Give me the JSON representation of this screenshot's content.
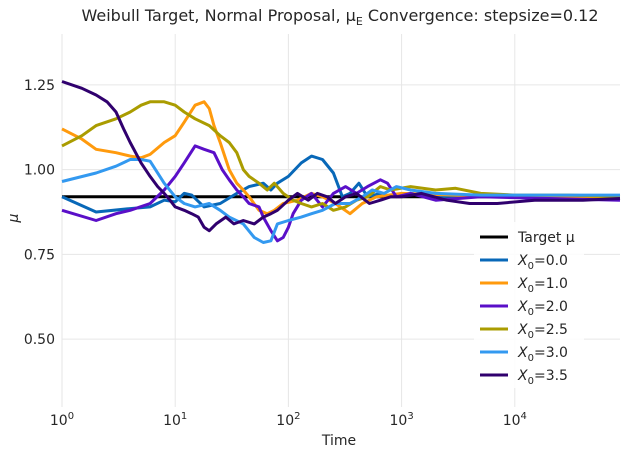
{
  "chart_data": {
    "type": "line",
    "title": "Weibull Target, Normal Proposal, μ",
    "title_sub": "E",
    "title_rest": " Convergence: stepsize=0.12",
    "xlabel": "Time",
    "ylabel": "μ",
    "xscale": "log",
    "xlim": [
      1,
      85000
    ],
    "ylim": [
      0.3,
      1.4
    ],
    "x_ticks": [
      {
        "base": "10",
        "exp": "0",
        "value": 1
      },
      {
        "base": "10",
        "exp": "1",
        "value": 10
      },
      {
        "base": "10",
        "exp": "2",
        "value": 100
      },
      {
        "base": "10",
        "exp": "3",
        "value": 1000
      },
      {
        "base": "10",
        "exp": "4",
        "value": 10000
      }
    ],
    "y_ticks": [
      "0.50",
      "0.75",
      "1.00",
      "1.25"
    ],
    "grid": true,
    "legend_position": "lower-right",
    "target": {
      "name": "Target μ",
      "value": 0.92,
      "color": "#000000"
    },
    "series": [
      {
        "label_base": "X",
        "label_sub": "0",
        "label_rest": "=0.0",
        "color": "#0868b8",
        "points": [
          [
            1,
            0.92
          ],
          [
            2,
            0.875
          ],
          [
            4,
            0.885
          ],
          [
            6,
            0.89
          ],
          [
            8,
            0.91
          ],
          [
            10,
            0.905
          ],
          [
            12,
            0.93
          ],
          [
            14,
            0.925
          ],
          [
            18,
            0.89
          ],
          [
            25,
            0.9
          ],
          [
            35,
            0.93
          ],
          [
            45,
            0.95
          ],
          [
            60,
            0.96
          ],
          [
            70,
            0.94
          ],
          [
            80,
            0.96
          ],
          [
            100,
            0.98
          ],
          [
            130,
            1.02
          ],
          [
            160,
            1.04
          ],
          [
            200,
            1.03
          ],
          [
            250,
            0.99
          ],
          [
            300,
            0.92
          ],
          [
            350,
            0.93
          ],
          [
            420,
            0.96
          ],
          [
            500,
            0.92
          ],
          [
            650,
            0.93
          ],
          [
            800,
            0.92
          ],
          [
            1200,
            0.93
          ],
          [
            2000,
            0.92
          ],
          [
            5000,
            0.925
          ],
          [
            20000,
            0.92
          ],
          [
            85000,
            0.92
          ]
        ]
      },
      {
        "label_base": "X",
        "label_sub": "0",
        "label_rest": "=1.0",
        "color": "#ff9a0d",
        "points": [
          [
            1,
            1.12
          ],
          [
            1.5,
            1.09
          ],
          [
            2,
            1.06
          ],
          [
            3,
            1.05
          ],
          [
            4,
            1.04
          ],
          [
            5,
            1.035
          ],
          [
            6,
            1.045
          ],
          [
            8,
            1.08
          ],
          [
            10,
            1.1
          ],
          [
            12,
            1.14
          ],
          [
            15,
            1.19
          ],
          [
            18,
            1.2
          ],
          [
            20,
            1.18
          ],
          [
            22,
            1.13
          ],
          [
            25,
            1.08
          ],
          [
            30,
            1.0
          ],
          [
            35,
            0.96
          ],
          [
            40,
            0.94
          ],
          [
            45,
            0.92
          ],
          [
            55,
            0.88
          ],
          [
            65,
            0.87
          ],
          [
            75,
            0.88
          ],
          [
            90,
            0.9
          ],
          [
            120,
            0.91
          ],
          [
            160,
            0.93
          ],
          [
            200,
            0.92
          ],
          [
            260,
            0.9
          ],
          [
            350,
            0.87
          ],
          [
            450,
            0.9
          ],
          [
            600,
            0.92
          ],
          [
            1000,
            0.93
          ],
          [
            3000,
            0.925
          ],
          [
            10000,
            0.92
          ],
          [
            85000,
            0.92
          ]
        ]
      },
      {
        "label_base": "X",
        "label_sub": "0",
        "label_rest": "=2.0",
        "color": "#5a0fc8",
        "points": [
          [
            1,
            0.88
          ],
          [
            2,
            0.85
          ],
          [
            3,
            0.87
          ],
          [
            4,
            0.88
          ],
          [
            6,
            0.9
          ],
          [
            8,
            0.94
          ],
          [
            10,
            0.98
          ],
          [
            12,
            1.02
          ],
          [
            15,
            1.07
          ],
          [
            18,
            1.06
          ],
          [
            22,
            1.05
          ],
          [
            26,
            1.0
          ],
          [
            30,
            0.97
          ],
          [
            35,
            0.94
          ],
          [
            40,
            0.92
          ],
          [
            45,
            0.9
          ],
          [
            55,
            0.89
          ],
          [
            60,
            0.86
          ],
          [
            70,
            0.82
          ],
          [
            80,
            0.79
          ],
          [
            90,
            0.8
          ],
          [
            100,
            0.83
          ],
          [
            110,
            0.87
          ],
          [
            130,
            0.91
          ],
          [
            160,
            0.93
          ],
          [
            200,
            0.89
          ],
          [
            250,
            0.93
          ],
          [
            320,
            0.95
          ],
          [
            400,
            0.93
          ],
          [
            500,
            0.95
          ],
          [
            650,
            0.97
          ],
          [
            750,
            0.96
          ],
          [
            900,
            0.92
          ],
          [
            1200,
            0.93
          ],
          [
            2000,
            0.91
          ],
          [
            5000,
            0.92
          ],
          [
            20000,
            0.915
          ],
          [
            85000,
            0.91
          ]
        ]
      },
      {
        "label_base": "X",
        "label_sub": "0",
        "label_rest": "=2.5",
        "color": "#aa9c00",
        "points": [
          [
            1,
            1.07
          ],
          [
            1.5,
            1.1
          ],
          [
            2,
            1.13
          ],
          [
            3,
            1.15
          ],
          [
            4,
            1.17
          ],
          [
            5,
            1.19
          ],
          [
            6,
            1.2
          ],
          [
            8,
            1.2
          ],
          [
            10,
            1.19
          ],
          [
            12,
            1.17
          ],
          [
            15,
            1.15
          ],
          [
            20,
            1.13
          ],
          [
            25,
            1.1
          ],
          [
            30,
            1.08
          ],
          [
            35,
            1.05
          ],
          [
            40,
            1.0
          ],
          [
            45,
            0.98
          ],
          [
            55,
            0.96
          ],
          [
            65,
            0.94
          ],
          [
            75,
            0.96
          ],
          [
            90,
            0.93
          ],
          [
            110,
            0.91
          ],
          [
            130,
            0.9
          ],
          [
            160,
            0.89
          ],
          [
            200,
            0.9
          ],
          [
            250,
            0.88
          ],
          [
            320,
            0.89
          ],
          [
            400,
            0.91
          ],
          [
            500,
            0.92
          ],
          [
            650,
            0.95
          ],
          [
            800,
            0.94
          ],
          [
            1200,
            0.95
          ],
          [
            2000,
            0.94
          ],
          [
            3000,
            0.945
          ],
          [
            5000,
            0.93
          ],
          [
            10000,
            0.925
          ],
          [
            30000,
            0.925
          ],
          [
            85000,
            0.92
          ]
        ]
      },
      {
        "label_base": "X",
        "label_sub": "0",
        "label_rest": "=3.0",
        "color": "#3399f0",
        "points": [
          [
            1,
            0.965
          ],
          [
            2,
            0.99
          ],
          [
            3,
            1.01
          ],
          [
            4,
            1.03
          ],
          [
            5,
            1.03
          ],
          [
            6,
            1.025
          ],
          [
            8,
            0.96
          ],
          [
            10,
            0.92
          ],
          [
            12,
            0.9
          ],
          [
            15,
            0.89
          ],
          [
            20,
            0.9
          ],
          [
            25,
            0.88
          ],
          [
            30,
            0.86
          ],
          [
            40,
            0.84
          ],
          [
            50,
            0.8
          ],
          [
            60,
            0.785
          ],
          [
            70,
            0.79
          ],
          [
            80,
            0.84
          ],
          [
            100,
            0.85
          ],
          [
            130,
            0.86
          ],
          [
            160,
            0.87
          ],
          [
            200,
            0.88
          ],
          [
            260,
            0.9
          ],
          [
            350,
            0.9
          ],
          [
            450,
            0.92
          ],
          [
            550,
            0.94
          ],
          [
            700,
            0.93
          ],
          [
            900,
            0.95
          ],
          [
            1200,
            0.94
          ],
          [
            2000,
            0.93
          ],
          [
            5000,
            0.925
          ],
          [
            20000,
            0.925
          ],
          [
            85000,
            0.925
          ]
        ]
      },
      {
        "label_base": "X",
        "label_sub": "0",
        "label_rest": "=3.5",
        "color": "#30006e",
        "points": [
          [
            1,
            1.26
          ],
          [
            1.5,
            1.24
          ],
          [
            2,
            1.22
          ],
          [
            2.5,
            1.2
          ],
          [
            3,
            1.17
          ],
          [
            3.5,
            1.12
          ],
          [
            4,
            1.08
          ],
          [
            5,
            1.02
          ],
          [
            6,
            0.98
          ],
          [
            7,
            0.95
          ],
          [
            8,
            0.93
          ],
          [
            9,
            0.91
          ],
          [
            10,
            0.89
          ],
          [
            12,
            0.88
          ],
          [
            14,
            0.87
          ],
          [
            16,
            0.86
          ],
          [
            18,
            0.83
          ],
          [
            20,
            0.82
          ],
          [
            23,
            0.84
          ],
          [
            28,
            0.86
          ],
          [
            33,
            0.84
          ],
          [
            40,
            0.85
          ],
          [
            50,
            0.84
          ],
          [
            60,
            0.86
          ],
          [
            70,
            0.87
          ],
          [
            80,
            0.88
          ],
          [
            100,
            0.91
          ],
          [
            120,
            0.93
          ],
          [
            150,
            0.91
          ],
          [
            180,
            0.93
          ],
          [
            220,
            0.92
          ],
          [
            260,
            0.9
          ],
          [
            320,
            0.92
          ],
          [
            400,
            0.93
          ],
          [
            520,
            0.9
          ],
          [
            650,
            0.91
          ],
          [
            800,
            0.92
          ],
          [
            1000,
            0.92
          ],
          [
            1500,
            0.93
          ],
          [
            2500,
            0.91
          ],
          [
            4000,
            0.9
          ],
          [
            7000,
            0.9
          ],
          [
            15000,
            0.91
          ],
          [
            40000,
            0.91
          ],
          [
            85000,
            0.915
          ]
        ]
      }
    ]
  }
}
